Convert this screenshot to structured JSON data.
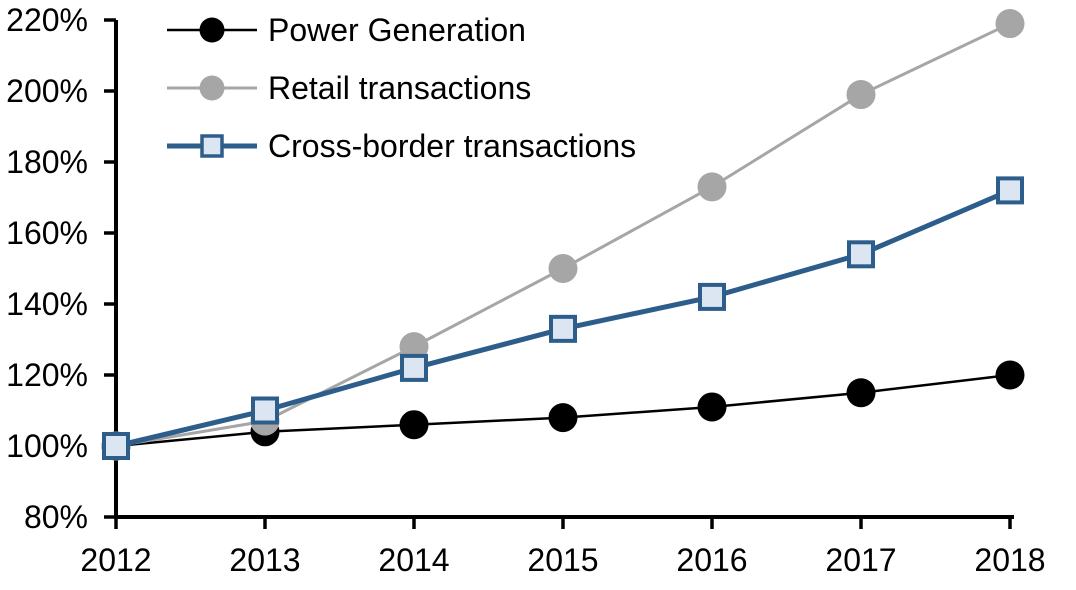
{
  "chart_data": {
    "type": "line",
    "title": "",
    "xlabel": "",
    "ylabel": "",
    "grid": false,
    "background": "#FFFFFF",
    "axis_color": "#000000",
    "categories": [
      "2012",
      "2013",
      "2014",
      "2015",
      "2016",
      "2017",
      "2018"
    ],
    "series": [
      {
        "name": "Power Generation",
        "color": "#000000",
        "marker": "circle",
        "marker_fill": "#000000",
        "line_width": 2.5,
        "values": [
          100,
          104,
          106,
          108,
          111,
          115,
          120
        ]
      },
      {
        "name": "Retail transactions",
        "color": "#A6A6A6",
        "marker": "circle",
        "marker_fill": "#A6A6A6",
        "line_width": 3,
        "values": [
          100,
          107,
          128,
          150,
          173,
          199,
          219
        ]
      },
      {
        "name": "Cross-border transactions",
        "color": "#2D5E8B",
        "marker": "square",
        "marker_fill": "#DCE6F2",
        "line_width": 5,
        "values": [
          100,
          110,
          122,
          133,
          142,
          154,
          172
        ]
      }
    ],
    "y_axis": {
      "min": 80,
      "max": 220,
      "tick_step": 20,
      "unit": "%",
      "tick_labels": [
        "80%",
        "100%",
        "120%",
        "140%",
        "160%",
        "180%",
        "200%",
        "220%"
      ]
    },
    "x_axis": {
      "tick_labels": [
        "2012",
        "2013",
        "2014",
        "2015",
        "2016",
        "2017",
        "2018"
      ]
    },
    "legend": {
      "position": "top-left"
    }
  }
}
